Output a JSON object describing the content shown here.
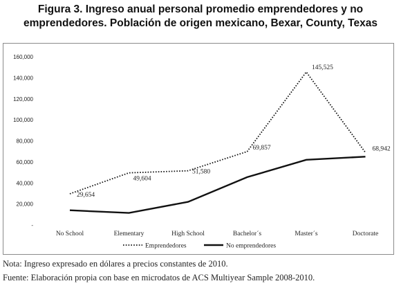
{
  "title_line1": "Figura 3. Ingreso anual personal promedio emprendedores y no",
  "title_line2": "emprendedores. Población de origen mexicano, Bexar, County, Texas",
  "notes": [
    "Nota: Ingreso expresado en dólares a precios constantes de 2010.",
    "Fuente: Elaboración propia con base en microdatos de ACS Multiyear Sample 2008-2010."
  ],
  "chart_data": {
    "type": "line",
    "title": "",
    "xlabel": "",
    "ylabel": "",
    "categories": [
      "No School",
      "Elementary",
      "High School",
      "Bachelor´s",
      "Master´s",
      "Doctorate"
    ],
    "ylim": [
      0,
      160000
    ],
    "yticks": [
      "-",
      "20,000",
      "40,000",
      "60,000",
      "80,000",
      "100,000",
      "120,000",
      "140,000",
      "160,000"
    ],
    "grid": false,
    "legend_position": "bottom",
    "series": [
      {
        "name": "Emprendedores",
        "style": "dotted",
        "color": "#111111",
        "values": [
          29654,
          49604,
          51580,
          69857,
          145525,
          68942
        ],
        "labels": [
          "29,654",
          "49,604",
          "51,580",
          "69,857",
          "145,525",
          "68,942"
        ]
      },
      {
        "name": "No emprendedores",
        "style": "solid",
        "color": "#111111",
        "values": [
          14000,
          11500,
          22000,
          45500,
          62000,
          65000
        ]
      }
    ]
  }
}
